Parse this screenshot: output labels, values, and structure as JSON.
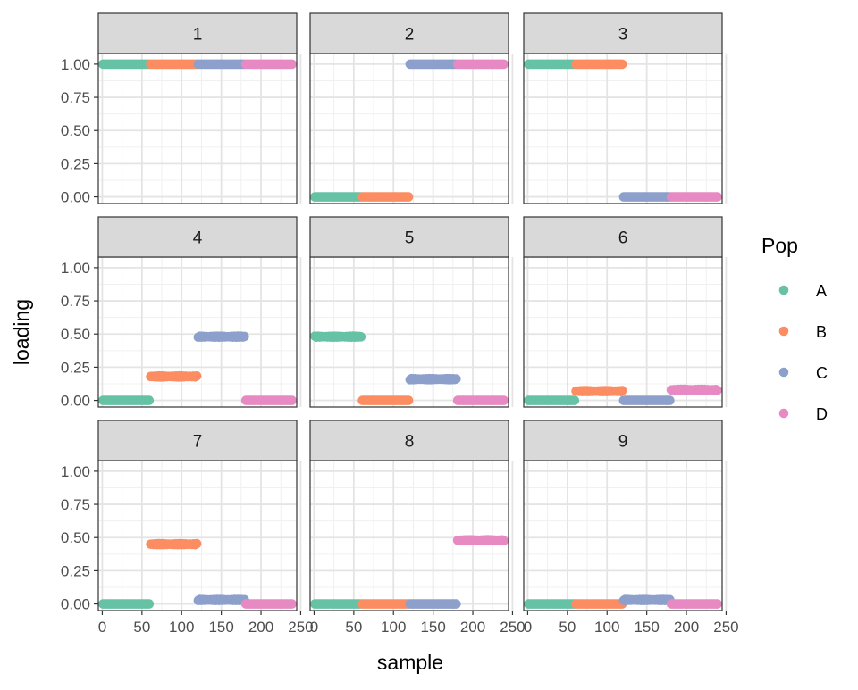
{
  "chart_data": {
    "type": "scatter",
    "facet": "grid-3x3",
    "xlabel": "sample",
    "ylabel": "loading",
    "xlim": [
      -5,
      245
    ],
    "ylim": [
      -0.05,
      1.08
    ],
    "xticks": [
      0,
      50,
      100,
      150,
      200,
      250
    ],
    "xtick_labels": [
      "0",
      "50",
      "100",
      "150",
      "200",
      "250"
    ],
    "yticks": [
      0,
      0.25,
      0.5,
      0.75,
      1.0
    ],
    "ytick_labels": [
      "0.00",
      "0.25",
      "0.50",
      "0.75",
      "1.00"
    ],
    "grid": true,
    "legend": {
      "title": "Pop",
      "position": "right",
      "entries": [
        {
          "label": "A",
          "color": "#66C2A5"
        },
        {
          "label": "B",
          "color": "#FC8D62"
        },
        {
          "label": "C",
          "color": "#8DA0CB"
        },
        {
          "label": "D",
          "color": "#E78AC3"
        }
      ]
    },
    "groups": [
      {
        "pop": "A",
        "x_range": [
          1,
          60
        ],
        "color": "#66C2A5"
      },
      {
        "pop": "B",
        "x_range": [
          61,
          120
        ],
        "color": "#FC8D62"
      },
      {
        "pop": "C",
        "x_range": [
          121,
          180
        ],
        "color": "#8DA0CB"
      },
      {
        "pop": "D",
        "x_range": [
          181,
          240
        ],
        "color": "#E78AC3"
      }
    ],
    "panels": [
      {
        "label": "1",
        "values": {
          "A": 1.0,
          "B": 1.0,
          "C": 1.0,
          "D": 1.0
        }
      },
      {
        "label": "2",
        "values": {
          "A": 0.0,
          "B": 0.0,
          "C": 1.0,
          "D": 1.0
        }
      },
      {
        "label": "3",
        "values": {
          "A": 1.0,
          "B": 1.0,
          "C": 0.0,
          "D": 0.0
        }
      },
      {
        "label": "4",
        "values": {
          "A": 0.0,
          "B": 0.18,
          "C": 0.48,
          "D": 0.0
        }
      },
      {
        "label": "5",
        "values": {
          "A": 0.48,
          "B": 0.0,
          "C": 0.16,
          "D": 0.0
        }
      },
      {
        "label": "6",
        "values": {
          "A": 0.0,
          "B": 0.07,
          "C": 0.0,
          "D": 0.08
        }
      },
      {
        "label": "7",
        "values": {
          "A": 0.0,
          "B": 0.45,
          "C": 0.03,
          "D": 0.0
        }
      },
      {
        "label": "8",
        "values": {
          "A": 0.0,
          "B": 0.0,
          "C": 0.0,
          "D": 0.48
        }
      },
      {
        "label": "9",
        "values": {
          "A": 0.0,
          "B": 0.0,
          "C": 0.03,
          "D": 0.0
        }
      }
    ]
  }
}
